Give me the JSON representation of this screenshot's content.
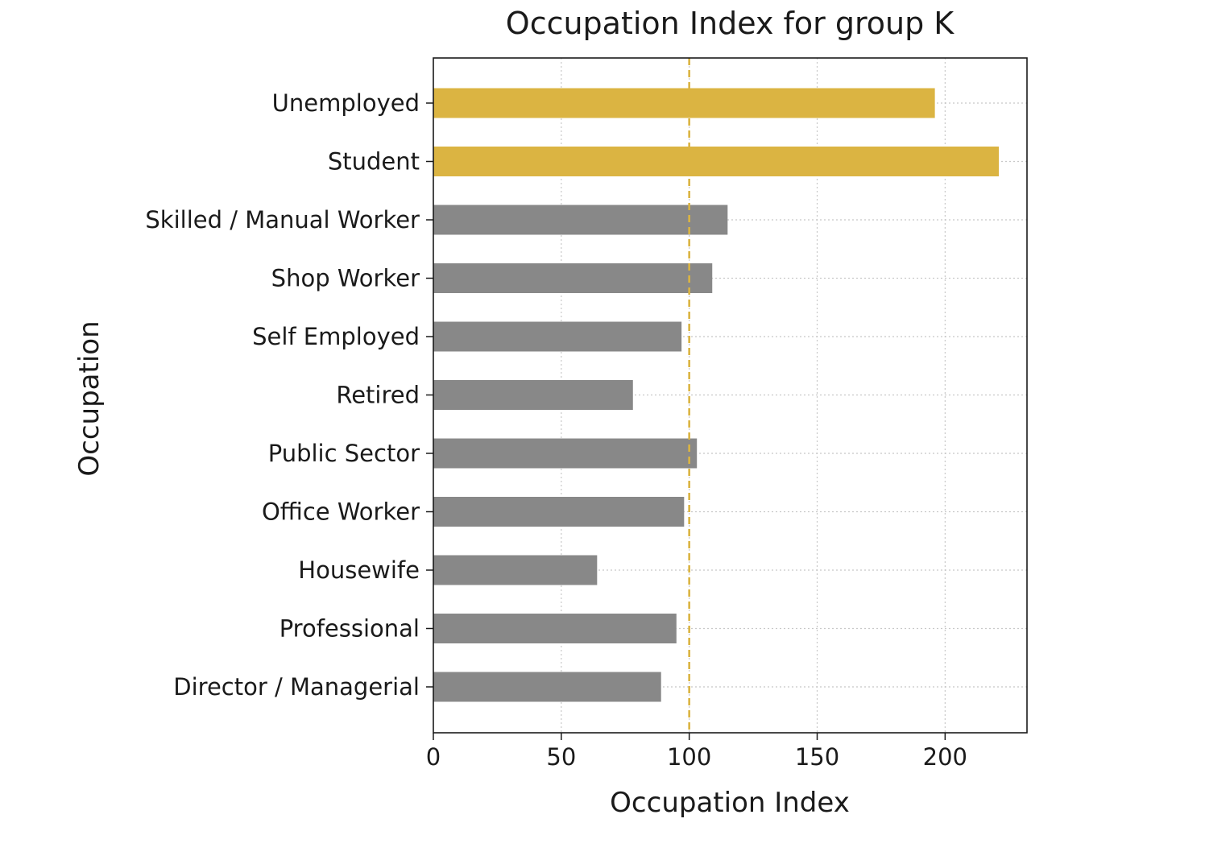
{
  "chart_data": {
    "type": "bar",
    "orientation": "horizontal",
    "title": "Occupation Index for group K",
    "xlabel": "Occupation Index",
    "ylabel": "Occupation",
    "xlim": [
      0,
      232
    ],
    "xticks": [
      0,
      50,
      100,
      150,
      200
    ],
    "categories": [
      "Director / Managerial",
      "Professional",
      "Housewife",
      "Office Worker",
      "Public Sector",
      "Retired",
      "Self Employed",
      "Shop Worker",
      "Skilled / Manual Worker",
      "Student",
      "Unemployed"
    ],
    "values": [
      89,
      95,
      64,
      98,
      103,
      78,
      97,
      109,
      115,
      221,
      196
    ],
    "bar_colors": [
      "#888888",
      "#888888",
      "#888888",
      "#888888",
      "#888888",
      "#888888",
      "#888888",
      "#888888",
      "#888888",
      "#dbb442",
      "#dbb442"
    ],
    "reference_line": {
      "value": 100,
      "color": "#dbb442",
      "style": "dashed"
    },
    "grid": true,
    "legend": "none"
  }
}
